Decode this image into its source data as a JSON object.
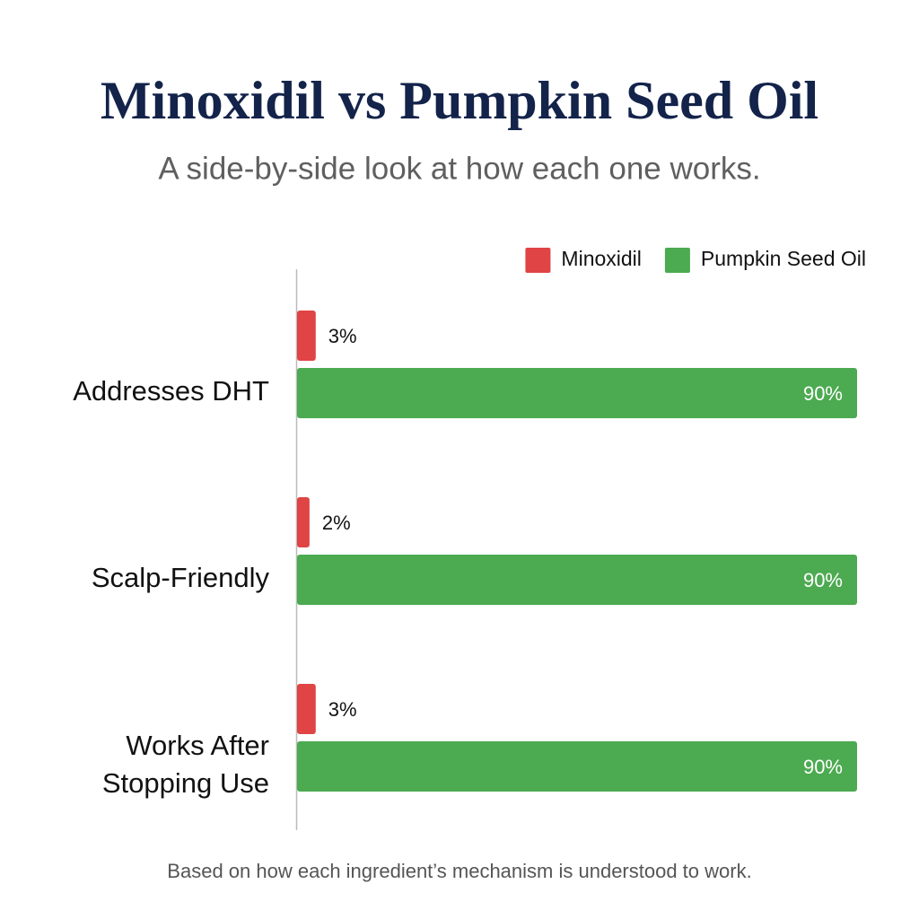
{
  "chart_data": {
    "type": "bar",
    "orientation": "horizontal",
    "title": "Minoxidil vs Pumpkin Seed Oil",
    "subtitle": "A side-by-side look at how each one works.",
    "categories": [
      "Addresses DHT",
      "Scalp-Friendly",
      "Works After Stopping Use"
    ],
    "series": [
      {
        "name": "Minoxidil",
        "color": "#e04444",
        "values": [
          3,
          2,
          3
        ],
        "value_labels": [
          "3%",
          "2%",
          "3%"
        ]
      },
      {
        "name": "Pumpkin Seed Oil",
        "color": "#4caa50",
        "values": [
          90,
          90,
          90
        ],
        "value_labels": [
          "90%",
          "90%",
          "90%"
        ]
      }
    ],
    "legend": "top-right",
    "footnote": "Based on how each ingredient’s mechanism is understood to work."
  }
}
